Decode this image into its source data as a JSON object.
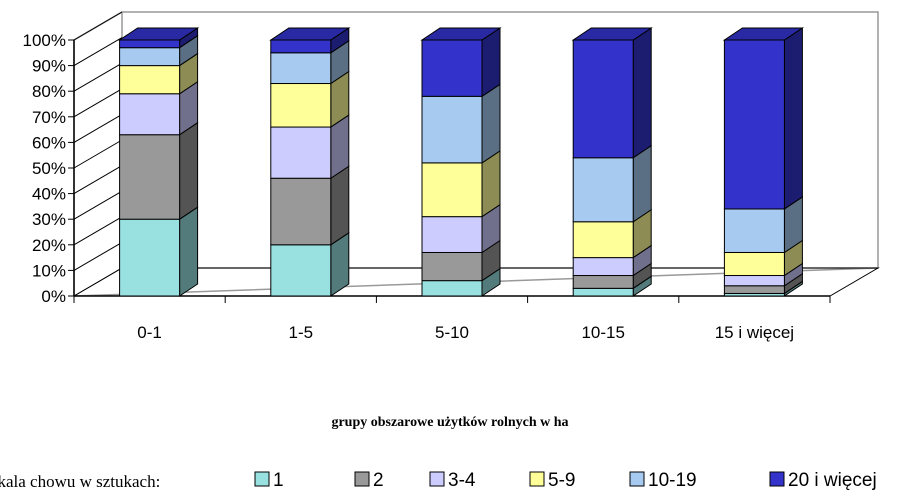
{
  "chart_data": {
    "type": "bar",
    "stacked": "percent",
    "three_d": true,
    "categories": [
      "0-1",
      "1-5",
      "5-10",
      "10-15",
      "15 i więcej"
    ],
    "series": [
      {
        "name": "1",
        "color": "#99E0E0",
        "values": [
          30,
          20,
          6,
          3,
          1
        ]
      },
      {
        "name": "2",
        "color": "#999999",
        "values": [
          33,
          26,
          11,
          5,
          3
        ]
      },
      {
        "name": "3-4",
        "color": "#CCCCFF",
        "values": [
          16,
          20,
          14,
          7,
          4
        ]
      },
      {
        "name": "5-9",
        "color": "#FFFF99",
        "values": [
          11,
          17,
          21,
          14,
          9
        ]
      },
      {
        "name": "10-19",
        "color": "#A6CAF0",
        "values": [
          7,
          12,
          26,
          25,
          17
        ]
      },
      {
        "name": "20 i więcej",
        "color": "#3333CC",
        "values": [
          3,
          5,
          22,
          46,
          66
        ]
      }
    ],
    "yticks": [
      "0%",
      "10%",
      "20%",
      "30%",
      "40%",
      "50%",
      "60%",
      "70%",
      "80%",
      "90%",
      "100%"
    ],
    "ylim": [
      0,
      100
    ],
    "xlabel": "grupy obszarowe użytków rolnych w ha",
    "ylabel": "",
    "title": "",
    "legend_title": "Skala chowu w sztukach:",
    "legend_position": "bottom",
    "grid": false
  }
}
